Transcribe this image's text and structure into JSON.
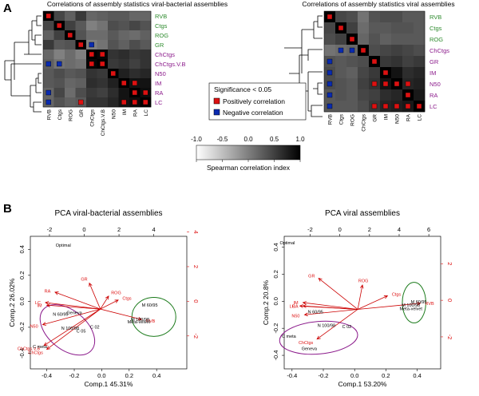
{
  "panels": {
    "a": "A",
    "b": "B"
  },
  "colors": {
    "green": "#2e8b2e",
    "purple": "#8b1a8b",
    "red": "#dd1111",
    "blue": "#0a2bb0",
    "dark_red": "#cc0000",
    "ellipse_green": "#1a7a1a",
    "ellipse_purple": "#8b1a8b"
  },
  "chart_data": [
    {
      "type": "heatmap",
      "id": "hm1",
      "title": "Correlations of assembly statistics viral-bacterial assemblies",
      "columns": [
        "RVB",
        "Ctgs",
        "ROG",
        "GR",
        "ChCtgs",
        "ChCtgs.V.B",
        "N50",
        "IM",
        "RA",
        "LC"
      ],
      "rows": [
        "RVB",
        "Ctgs",
        "ROG",
        "GR",
        "ChCtgs",
        "ChCtgs.V.B",
        "N50",
        "IM",
        "RA",
        "LC"
      ],
      "row_groups": [
        "green",
        "green",
        "green",
        "green",
        "purple",
        "purple",
        "purple",
        "purple",
        "purple",
        "purple"
      ],
      "values": [
        [
          1.0,
          0.45,
          0.25,
          0.55,
          0.2,
          0.25,
          0.3,
          0.3,
          0.2,
          0.2
        ],
        [
          0.45,
          1.0,
          0.5,
          0.3,
          0.0,
          0.1,
          0.4,
          0.35,
          0.45,
          0.35
        ],
        [
          0.25,
          0.5,
          1.0,
          0.35,
          0.15,
          0.15,
          0.3,
          0.2,
          0.15,
          0.25
        ],
        [
          0.55,
          0.3,
          0.35,
          1.0,
          0.0,
          0.1,
          0.35,
          0.25,
          0.4,
          0.3
        ],
        [
          0.2,
          0.0,
          0.15,
          0.0,
          1.0,
          0.95,
          0.6,
          0.65,
          0.55,
          0.6
        ],
        [
          0.25,
          0.1,
          0.15,
          0.1,
          0.95,
          1.0,
          0.55,
          0.6,
          0.5,
          0.6
        ],
        [
          0.3,
          0.4,
          0.3,
          0.35,
          0.6,
          0.55,
          1.0,
          0.75,
          0.65,
          0.7
        ],
        [
          0.3,
          0.35,
          0.2,
          0.25,
          0.65,
          0.6,
          0.75,
          1.0,
          0.85,
          0.85
        ],
        [
          0.2,
          0.45,
          0.15,
          0.4,
          0.55,
          0.5,
          0.65,
          0.85,
          1.0,
          0.9
        ],
        [
          0.2,
          0.35,
          0.25,
          0.3,
          0.6,
          0.6,
          0.7,
          0.85,
          0.9,
          1.0
        ]
      ],
      "significant_positive": [
        [
          0,
          0
        ],
        [
          1,
          1
        ],
        [
          2,
          2
        ],
        [
          3,
          3
        ],
        [
          4,
          4
        ],
        [
          4,
          5
        ],
        [
          5,
          4
        ],
        [
          5,
          5
        ],
        [
          6,
          6
        ],
        [
          7,
          7
        ],
        [
          7,
          8
        ],
        [
          8,
          8
        ],
        [
          8,
          9
        ],
        [
          9,
          3
        ],
        [
          9,
          7
        ],
        [
          9,
          8
        ],
        [
          9,
          9
        ]
      ],
      "significant_negative": [
        [
          3,
          4
        ],
        [
          5,
          0
        ],
        [
          5,
          1
        ],
        [
          8,
          0
        ],
        [
          9,
          0
        ]
      ]
    },
    {
      "type": "heatmap",
      "id": "hm2",
      "title": "Correlations of assembly statistics viral assemblies",
      "columns": [
        "RVB",
        "Ctgs",
        "ROG",
        "ChCtgs",
        "GR",
        "IM",
        "N50",
        "RA",
        "LC"
      ],
      "rows": [
        "RVB",
        "Ctgs",
        "ROG",
        "ChCtgs",
        "GR",
        "IM",
        "N50",
        "RA",
        "LC"
      ],
      "row_groups": [
        "green",
        "green",
        "green",
        "purple",
        "purple",
        "purple",
        "purple",
        "purple",
        "purple"
      ],
      "values": [
        [
          1.0,
          0.45,
          0.4,
          0.1,
          0.35,
          0.4,
          0.4,
          0.3,
          0.3
        ],
        [
          0.45,
          1.0,
          0.5,
          0.15,
          0.3,
          0.3,
          0.35,
          0.35,
          0.3
        ],
        [
          0.4,
          0.5,
          1.0,
          0.2,
          0.35,
          0.25,
          0.3,
          0.3,
          0.3
        ],
        [
          0.1,
          0.15,
          0.2,
          1.0,
          0.4,
          0.45,
          0.5,
          0.45,
          0.4
        ],
        [
          0.35,
          0.3,
          0.35,
          0.4,
          1.0,
          0.55,
          0.6,
          0.5,
          0.55
        ],
        [
          0.4,
          0.3,
          0.25,
          0.45,
          0.55,
          1.0,
          0.85,
          0.65,
          0.7
        ],
        [
          0.4,
          0.35,
          0.3,
          0.5,
          0.6,
          0.85,
          1.0,
          0.7,
          0.75
        ],
        [
          0.3,
          0.35,
          0.3,
          0.45,
          0.5,
          0.65,
          0.7,
          1.0,
          0.8
        ],
        [
          0.3,
          0.3,
          0.3,
          0.4,
          0.55,
          0.7,
          0.75,
          0.8,
          1.0
        ]
      ],
      "significant_positive": [
        [
          0,
          0
        ],
        [
          1,
          1
        ],
        [
          2,
          2
        ],
        [
          3,
          3
        ],
        [
          4,
          4
        ],
        [
          5,
          5
        ],
        [
          6,
          4
        ],
        [
          6,
          5
        ],
        [
          6,
          6
        ],
        [
          6,
          7
        ],
        [
          7,
          7
        ],
        [
          8,
          4
        ],
        [
          8,
          5
        ],
        [
          8,
          6
        ],
        [
          8,
          7
        ],
        [
          8,
          8
        ]
      ],
      "significant_negative": [
        [
          3,
          1
        ],
        [
          3,
          2
        ],
        [
          4,
          0
        ],
        [
          5,
          0
        ],
        [
          6,
          0
        ],
        [
          7,
          0
        ],
        [
          8,
          0
        ]
      ]
    },
    {
      "type": "scatter",
      "id": "pca1",
      "title": "PCA viral-bacterial assemblies",
      "xlabel": "Comp.1  45.31%",
      "ylabel": "Comp.2  26.02%",
      "xlim": [
        -0.52,
        0.62
      ],
      "ylim": [
        -0.52,
        0.5
      ],
      "xticks": [
        -0.4,
        -0.2,
        0.0,
        0.2,
        0.4
      ],
      "yticks": [
        -0.4,
        -0.2,
        0.0,
        0.2,
        0.4
      ],
      "top_lim": [
        -3.1,
        5.9
      ],
      "top_ticks": [
        -2,
        0,
        2,
        4
      ],
      "right_lim": [
        -3.9,
        3.75
      ],
      "right_ticks": [
        -2,
        0,
        2,
        4
      ],
      "origin": [
        -0.01,
        -0.06
      ],
      "arrows": [
        {
          "label": "GR",
          "x": -0.09,
          "y": 0.14
        },
        {
          "label": "ROG",
          "x": 0.05,
          "y": 0.04
        },
        {
          "label": "Ctgs",
          "x": 0.12,
          "y": 0.01
        },
        {
          "label": "RA",
          "x": -0.34,
          "y": 0.07
        },
        {
          "label": "LC",
          "x": -0.41,
          "y": -0.01
        },
        {
          "label": "IM",
          "x": -0.4,
          "y": -0.03
        },
        {
          "label": "N50",
          "x": -0.43,
          "y": -0.18
        },
        {
          "label": "ChCtgs.V.B",
          "x": -0.42,
          "y": -0.34
        },
        {
          "label": "ChCtgs",
          "x": -0.4,
          "y": -0.37
        },
        {
          "label": "RVB",
          "x": 0.29,
          "y": -0.14
        }
      ],
      "points": [
        {
          "label": "Optimal",
          "x": -0.28,
          "y": 0.42
        },
        {
          "label": "M 60/95",
          "x": 0.35,
          "y": -0.04
        },
        {
          "label": "M 100/98",
          "x": 0.28,
          "y": -0.15
        },
        {
          "label": "Meta-velvet",
          "x": 0.27,
          "y": -0.17
        },
        {
          "label": "N 60/95",
          "x": -0.3,
          "y": -0.11
        },
        {
          "label": "Geneva",
          "x": -0.2,
          "y": -0.1
        },
        {
          "label": "C 02",
          "x": -0.05,
          "y": -0.21
        },
        {
          "label": "N 100/98",
          "x": -0.23,
          "y": -0.22
        },
        {
          "label": "C 05",
          "x": -0.15,
          "y": -0.24
        },
        {
          "label": "C meta",
          "x": -0.45,
          "y": -0.36
        }
      ],
      "ellipses": [
        {
          "group": "green",
          "cx": 0.38,
          "cy": -0.12,
          "rx": 0.16,
          "ry": 0.15,
          "angle": 0
        },
        {
          "group": "purple",
          "cx": -0.25,
          "cy": -0.22,
          "rx": 0.23,
          "ry": 0.15,
          "angle": 40
        }
      ]
    },
    {
      "type": "scatter",
      "id": "pca2",
      "title": "PCA viral assemblies",
      "xlabel": "Comp.1  53.20%",
      "ylabel": "Comp.2  20.8%",
      "xlim": [
        -0.45,
        0.55
      ],
      "ylim": [
        -0.5,
        0.48
      ],
      "xticks": [
        -0.4,
        -0.2,
        0.0,
        0.2,
        0.4
      ],
      "yticks": [
        -0.4,
        -0.2,
        0.0,
        0.2,
        0.4
      ],
      "top_lim": [
        -3.75,
        6.8
      ],
      "top_ticks": [
        -2,
        0,
        2,
        4,
        6
      ],
      "right_lim": [
        -3.75,
        3.5
      ],
      "right_ticks": [
        -2,
        0,
        2
      ],
      "origin": [
        0.02,
        -0.06
      ],
      "arrows": [
        {
          "label": "GR",
          "x": -0.23,
          "y": 0.17
        },
        {
          "label": "ROG",
          "x": 0.05,
          "y": 0.12
        },
        {
          "label": "Ctgs",
          "x": 0.21,
          "y": 0.04
        },
        {
          "label": "IM",
          "x": -0.33,
          "y": -0.01
        },
        {
          "label": "LC",
          "x": -0.35,
          "y": -0.035
        },
        {
          "label": "RA",
          "x": -0.33,
          "y": -0.035
        },
        {
          "label": "N50",
          "x": -0.32,
          "y": -0.1
        },
        {
          "label": "ChCtgs",
          "x": -0.24,
          "y": -0.28
        },
        {
          "label": "RVB",
          "x": 0.42,
          "y": -0.015
        }
      ],
      "points": [
        {
          "label": "Optimal",
          "x": -0.43,
          "y": 0.42
        },
        {
          "label": "M 60/95",
          "x": 0.41,
          "y": -0.015
        },
        {
          "label": "M 100/98",
          "x": 0.36,
          "y": -0.04
        },
        {
          "label": "Meta-velvet",
          "x": 0.36,
          "y": -0.065
        },
        {
          "label": "N 60/95",
          "x": -0.25,
          "y": -0.09
        },
        {
          "label": "N 100/98",
          "x": -0.18,
          "y": -0.19
        },
        {
          "label": "C 02",
          "x": -0.05,
          "y": -0.2
        },
        {
          "label": "C meta",
          "x": -0.42,
          "y": -0.27
        },
        {
          "label": "Geneva",
          "x": -0.29,
          "y": -0.36
        }
      ],
      "ellipses": [
        {
          "group": "green",
          "cx": 0.38,
          "cy": -0.01,
          "rx": 0.075,
          "ry": 0.15,
          "angle": 0
        },
        {
          "group": "purple",
          "cx": -0.23,
          "cy": -0.27,
          "rx": 0.25,
          "ry": 0.12,
          "angle": -5
        }
      ]
    }
  ],
  "colorbar": {
    "title": "Spearman correlation index",
    "ticks": [
      "-1.0",
      "-0.5",
      "0.0",
      "0.5",
      "1.0"
    ],
    "range": [
      -1,
      1
    ]
  },
  "legend": {
    "title": "Significance < 0.05",
    "positive": "Positively correlation",
    "negative": "Negative correlation"
  }
}
